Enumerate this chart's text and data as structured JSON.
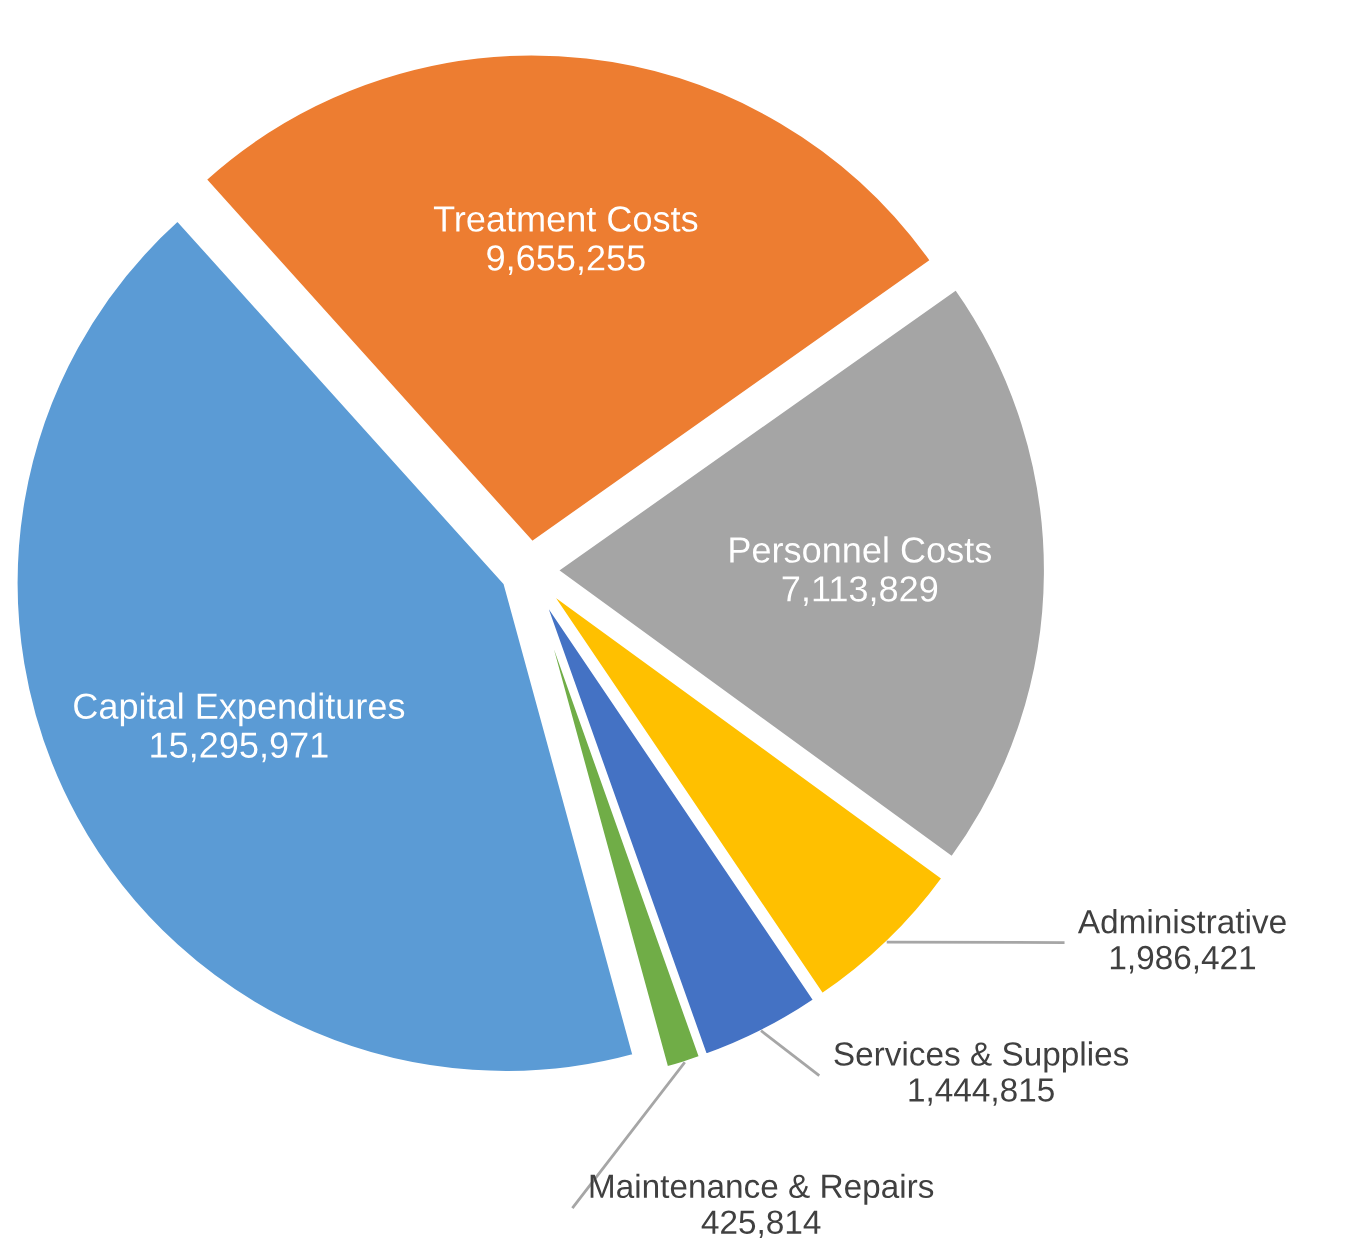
{
  "chart_data": {
    "type": "pie",
    "categories": [
      "Treatment Costs",
      "Personnel Costs",
      "Administrative",
      "Services & Supplies",
      "Maintenance & Repairs",
      "Capital Expenditures"
    ],
    "values": [
      9655255,
      7113829,
      1986421,
      1444815,
      425814,
      15295971
    ],
    "colors": [
      "#ed7d31",
      "#a5a5a5",
      "#ffc000",
      "#4472c4",
      "#70ad47",
      "#5b9bd5"
    ],
    "value_labels": [
      "9,655,255",
      "7,113,829",
      "1,986,421",
      "1,444,815",
      "425,814",
      "15,295,971"
    ],
    "legend": false
  }
}
